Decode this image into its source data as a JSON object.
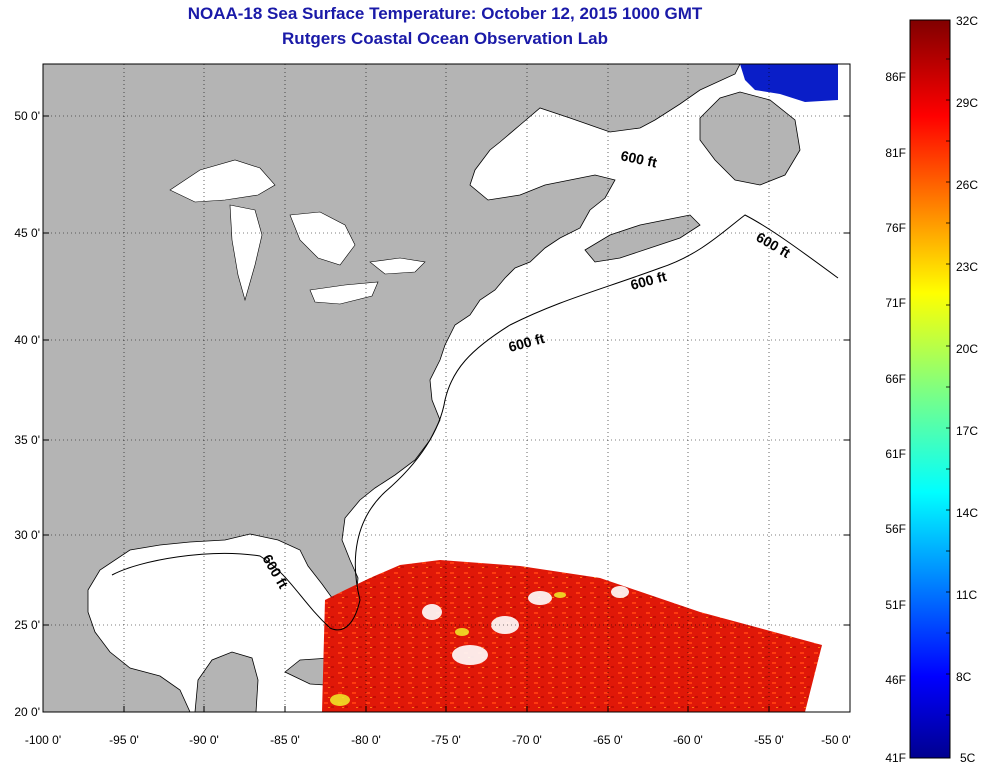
{
  "title": {
    "line1": "NOAA-18 Sea Surface Temperature:  October 12, 2015 1000 GMT",
    "line2": "Rutgers Coastal Ocean Observation Lab"
  },
  "map": {
    "lon_ticks": [
      "-100 0'",
      "-95 0'",
      "-90 0'",
      "-85 0'",
      "-80 0'",
      "-75 0'",
      "-70 0'",
      "-65 0'",
      "-60 0'",
      "-55 0'",
      "-50 0'"
    ],
    "lat_ticks": [
      "20 0'",
      "25 0'",
      "30 0'",
      "35 0'",
      "40 0'",
      "45 0'",
      "50 0'"
    ],
    "lon_range": [
      -100,
      -50
    ],
    "lat_range": [
      20,
      52.5
    ],
    "contour_label": "600 ft",
    "land_color": "#b4b4b4",
    "ocean_color": "#ffffff"
  },
  "colorbar": {
    "celsius": [
      "32C",
      "29C",
      "26C",
      "23C",
      "20C",
      "17C",
      "14C",
      "11C",
      "8C",
      "5C"
    ],
    "fahrenheit": [
      "86F",
      "81F",
      "76F",
      "71F",
      "66F",
      "61F",
      "56F",
      "51F",
      "46F",
      "41F"
    ],
    "range_c": [
      5,
      32
    ],
    "colormap": "jet"
  }
}
